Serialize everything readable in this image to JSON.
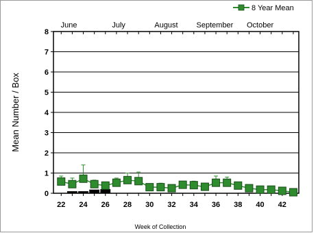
{
  "chart_data": {
    "type": "line",
    "title": "",
    "xlabel": "Week of Collection",
    "ylabel": "Mean Number / Box",
    "xlim": [
      21.3,
      43.5
    ],
    "ylim": [
      0,
      8
    ],
    "x_ticks": [
      22,
      24,
      26,
      28,
      30,
      32,
      34,
      36,
      38,
      40,
      42
    ],
    "y_ticks": [
      0,
      1,
      2,
      3,
      4,
      5,
      6,
      7,
      8
    ],
    "grid": true,
    "legend_position": "top-right",
    "months": [
      "June",
      "July",
      "August",
      "September",
      "October"
    ],
    "month_positions": [
      22.7,
      27.2,
      31.5,
      35.9,
      40.0
    ],
    "series": [
      {
        "name": "8 Year Mean",
        "color": "#2e8b2e",
        "marker": "square",
        "x": [
          22,
          23,
          24,
          25,
          26,
          27,
          28,
          29,
          30,
          31,
          32,
          33,
          34,
          35,
          36,
          37,
          38,
          39,
          40,
          41,
          42,
          43
        ],
        "y": [
          0.58,
          0.45,
          0.72,
          0.45,
          0.38,
          0.52,
          0.65,
          0.6,
          0.3,
          0.3,
          0.25,
          0.42,
          0.4,
          0.32,
          0.52,
          0.52,
          0.38,
          0.25,
          0.18,
          0.18,
          0.12,
          0.05
        ],
        "error_upper": [
          0.85,
          0.75,
          1.4,
          0.65,
          0.55,
          0.75,
          1.0,
          1.05,
          0.4,
          0.5,
          0.35,
          0.55,
          0.6,
          0.45,
          0.85,
          0.8,
          0.48,
          0.35,
          0.25,
          0.25,
          0.18,
          0.08
        ]
      },
      {
        "name": "",
        "type": "bar",
        "color": "#000000",
        "x": [
          23,
          24,
          25,
          26
        ],
        "y": [
          0.1,
          0.1,
          0.18,
          0.2
        ]
      }
    ]
  }
}
